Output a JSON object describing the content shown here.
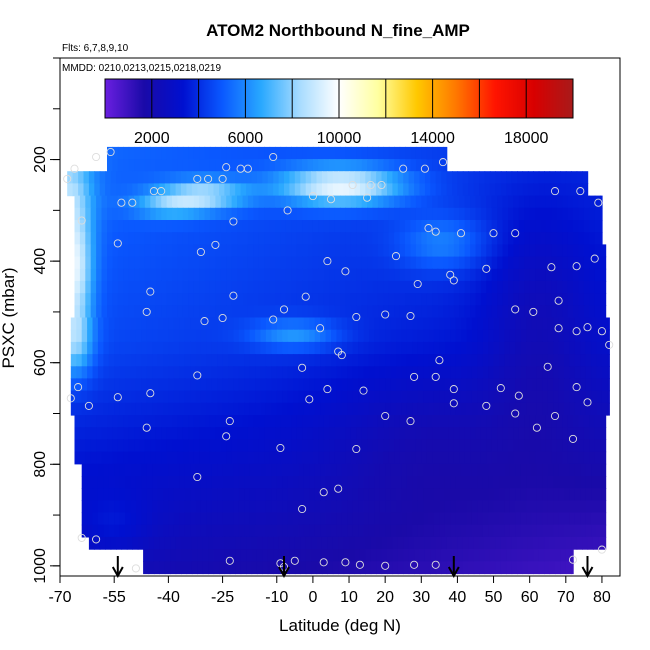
{
  "chart_data": {
    "type": "heatmap",
    "title": "ATOM2 Northbound N_fine_AMP",
    "flights_label": "Flts: 6,7,8,9,10",
    "dates_label": "MMDD: 0210,0213,0215,0218,0219",
    "xlabel": "Latitude (deg N)",
    "ylabel": "PSXC (mbar)",
    "xlim": [
      -70,
      85
    ],
    "ylim": [
      1020,
      0
    ],
    "x_ticks": [
      -70,
      -55,
      -40,
      -25,
      -10,
      0,
      10,
      20,
      30,
      40,
      50,
      60,
      70,
      80
    ],
    "x_tick_labels": [
      "-70",
      "-55",
      "-40",
      "-25",
      "-10",
      "0",
      "10",
      "20",
      "30",
      "40",
      "50",
      "60",
      "70",
      "80"
    ],
    "y_ticks": [
      200,
      400,
      600,
      800,
      1000
    ],
    "y_tick_labels": [
      "200",
      "400",
      "600",
      "800",
      "1000"
    ],
    "colorbar": {
      "min": 0,
      "max": 20000,
      "ticks": [
        2000,
        6000,
        10000,
        14000,
        18000
      ],
      "tick_labels": [
        "2000",
        "6000",
        "10000",
        "14000",
        "18000"
      ],
      "colors": [
        "#6a1fe0",
        "#1a0aa8",
        "#0010d0",
        "#0a58ff",
        "#28a8ff",
        "#a8dcff",
        "#ffffff",
        "#ffffa0",
        "#ffc800",
        "#ff7800",
        "#ff1400",
        "#d80000",
        "#a81a1a"
      ]
    },
    "arrows_latitude": [
      -54,
      -8,
      39,
      76
    ],
    "sample_points": [
      {
        "x": -56,
        "y": 185
      },
      {
        "x": -60,
        "y": 195
      },
      {
        "x": -66,
        "y": 218
      },
      {
        "x": -68,
        "y": 238
      },
      {
        "x": -53,
        "y": 285
      },
      {
        "x": -50,
        "y": 285
      },
      {
        "x": -44,
        "y": 262
      },
      {
        "x": -42,
        "y": 262
      },
      {
        "x": -64,
        "y": 320
      },
      {
        "x": -54,
        "y": 365
      },
      {
        "x": -32,
        "y": 238
      },
      {
        "x": -29,
        "y": 238
      },
      {
        "x": -25,
        "y": 238
      },
      {
        "x": -24,
        "y": 215
      },
      {
        "x": -20,
        "y": 218
      },
      {
        "x": -18,
        "y": 218
      },
      {
        "x": -11,
        "y": 195
      },
      {
        "x": -7,
        "y": 300
      },
      {
        "x": 0,
        "y": 272
      },
      {
        "x": 5,
        "y": 278
      },
      {
        "x": 11,
        "y": 250
      },
      {
        "x": 15,
        "y": 275
      },
      {
        "x": 16,
        "y": 250
      },
      {
        "x": 19,
        "y": 250
      },
      {
        "x": 25,
        "y": 218
      },
      {
        "x": 31,
        "y": 218
      },
      {
        "x": 36,
        "y": 205
      },
      {
        "x": -22,
        "y": 322
      },
      {
        "x": -27,
        "y": 368
      },
      {
        "x": -31,
        "y": 382
      },
      {
        "x": 4,
        "y": 400
      },
      {
        "x": 9,
        "y": 420
      },
      {
        "x": 23,
        "y": 390
      },
      {
        "x": 32,
        "y": 335
      },
      {
        "x": 34,
        "y": 342
      },
      {
        "x": 41,
        "y": 345
      },
      {
        "x": 50,
        "y": 345
      },
      {
        "x": 56,
        "y": 345
      },
      {
        "x": 67,
        "y": 262
      },
      {
        "x": 74,
        "y": 262
      },
      {
        "x": 79,
        "y": 285
      },
      {
        "x": 66,
        "y": 412
      },
      {
        "x": 73,
        "y": 410
      },
      {
        "x": 78,
        "y": 395
      },
      {
        "x": 38,
        "y": 427
      },
      {
        "x": 39,
        "y": 438
      },
      {
        "x": 48,
        "y": 415
      },
      {
        "x": 29,
        "y": 445
      },
      {
        "x": -45,
        "y": 460
      },
      {
        "x": -22,
        "y": 468
      },
      {
        "x": -46,
        "y": 500
      },
      {
        "x": -30,
        "y": 518
      },
      {
        "x": -25,
        "y": 512
      },
      {
        "x": -11,
        "y": 515
      },
      {
        "x": -8,
        "y": 495
      },
      {
        "x": -2,
        "y": 470
      },
      {
        "x": 2,
        "y": 532
      },
      {
        "x": 12,
        "y": 510
      },
      {
        "x": 20,
        "y": 505
      },
      {
        "x": 27,
        "y": 508
      },
      {
        "x": 56,
        "y": 495
      },
      {
        "x": 61,
        "y": 500
      },
      {
        "x": 68,
        "y": 478
      },
      {
        "x": 68,
        "y": 532
      },
      {
        "x": 73,
        "y": 538
      },
      {
        "x": 76,
        "y": 530
      },
      {
        "x": 80,
        "y": 538
      },
      {
        "x": 82,
        "y": 565
      },
      {
        "x": -32,
        "y": 625
      },
      {
        "x": -3,
        "y": 610
      },
      {
        "x": 7,
        "y": 578
      },
      {
        "x": 8,
        "y": 585
      },
      {
        "x": 28,
        "y": 628
      },
      {
        "x": 34,
        "y": 628
      },
      {
        "x": 35,
        "y": 595
      },
      {
        "x": 65,
        "y": 608
      },
      {
        "x": 73,
        "y": 648
      },
      {
        "x": -65,
        "y": 648
      },
      {
        "x": -67,
        "y": 670
      },
      {
        "x": -62,
        "y": 685
      },
      {
        "x": -54,
        "y": 668
      },
      {
        "x": -45,
        "y": 660
      },
      {
        "x": -46,
        "y": 728
      },
      {
        "x": -23,
        "y": 715
      },
      {
        "x": -24,
        "y": 745
      },
      {
        "x": -1,
        "y": 672
      },
      {
        "x": 4,
        "y": 652
      },
      {
        "x": 14,
        "y": 655
      },
      {
        "x": 20,
        "y": 705
      },
      {
        "x": 27,
        "y": 715
      },
      {
        "x": 39,
        "y": 652
      },
      {
        "x": 39,
        "y": 680
      },
      {
        "x": 48,
        "y": 685
      },
      {
        "x": 52,
        "y": 650
      },
      {
        "x": 57,
        "y": 665
      },
      {
        "x": 56,
        "y": 700
      },
      {
        "x": 62,
        "y": 728
      },
      {
        "x": 67,
        "y": 705
      },
      {
        "x": 72,
        "y": 750
      },
      {
        "x": 76,
        "y": 678
      },
      {
        "x": -9,
        "y": 768
      },
      {
        "x": 12,
        "y": 770
      },
      {
        "x": -32,
        "y": 825
      },
      {
        "x": -3,
        "y": 888
      },
      {
        "x": 3,
        "y": 855
      },
      {
        "x": 7,
        "y": 848
      },
      {
        "x": -64,
        "y": 945
      },
      {
        "x": -60,
        "y": 948
      },
      {
        "x": -49,
        "y": 1005
      },
      {
        "x": -23,
        "y": 990
      },
      {
        "x": -9,
        "y": 995
      },
      {
        "x": -8,
        "y": 1002
      },
      {
        "x": -5,
        "y": 990
      },
      {
        "x": 3,
        "y": 993
      },
      {
        "x": 9,
        "y": 993
      },
      {
        "x": 13,
        "y": 998
      },
      {
        "x": 20,
        "y": 1000
      },
      {
        "x": 28,
        "y": 998
      },
      {
        "x": 34,
        "y": 998
      },
      {
        "x": 72,
        "y": 988
      },
      {
        "x": 80,
        "y": 968
      }
    ]
  }
}
